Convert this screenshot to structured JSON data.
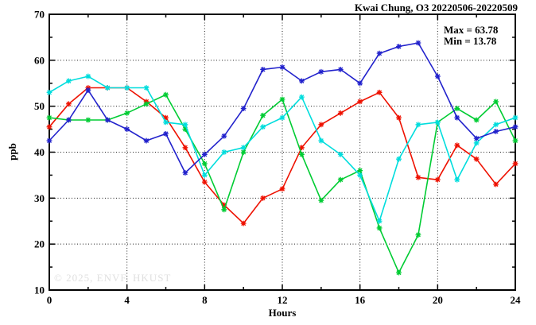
{
  "title": "Kwai Chung, O3 20220506-20220509",
  "annotation": {
    "max_label": "Max = 63.78",
    "min_label": "Min = 13.78"
  },
  "watermark": "© 2025, ENVF, HKUST",
  "chart_data": {
    "type": "line",
    "title": "Kwai Chung, O3 20220506-20220509",
    "xlabel": "Hours",
    "ylabel": "ppb",
    "xlim": [
      0,
      24
    ],
    "ylim": [
      10,
      70
    ],
    "x_major_ticks": [
      0,
      4,
      8,
      12,
      16,
      20,
      24
    ],
    "x_minor_ticks": [
      2,
      6,
      10,
      14,
      18,
      22
    ],
    "y_major_ticks": [
      10,
      20,
      30,
      40,
      50,
      60,
      70
    ],
    "y_minor_ticks": [
      15,
      25,
      35,
      45,
      55,
      65
    ],
    "x_grid": [
      4,
      8,
      12,
      16,
      20
    ],
    "y_grid": [
      20,
      30,
      40,
      50,
      60
    ],
    "grid": "dotted",
    "legend_position": "none",
    "max": 63.78,
    "min": 13.78,
    "marker": "asterisk",
    "x": [
      0,
      1,
      2,
      3,
      4,
      5,
      6,
      7,
      8,
      9,
      10,
      11,
      12,
      13,
      14,
      15,
      16,
      17,
      18,
      19,
      20,
      21,
      22,
      23,
      24
    ],
    "series": [
      {
        "name": "red",
        "color": "#ee1100",
        "values": [
          45.5,
          50.5,
          54,
          54,
          54,
          51,
          47.5,
          41,
          33.5,
          28.5,
          24.5,
          30,
          32,
          41,
          46,
          48.5,
          51,
          53,
          47.5,
          34.5,
          34,
          41.5,
          38.5,
          33,
          37.5
        ]
      },
      {
        "name": "green",
        "color": "#00cc33",
        "values": [
          47.5,
          47,
          47,
          47,
          48.5,
          50.5,
          52.5,
          45,
          37.5,
          27.5,
          40,
          48,
          51.5,
          39.5,
          29.5,
          34,
          36,
          23.5,
          13.78,
          22,
          46.5,
          49.5,
          47,
          51,
          42.5
        ]
      },
      {
        "name": "cyan",
        "color": "#00dddd",
        "values": [
          53,
          55.5,
          56.5,
          54,
          54,
          54,
          46.5,
          46,
          35,
          40,
          41,
          45.5,
          47.5,
          52,
          42.5,
          39.5,
          35,
          25,
          38.5,
          46,
          46.5,
          34,
          42,
          46,
          47.5
        ]
      },
      {
        "name": "blue",
        "color": "#2222cc",
        "values": [
          42.5,
          47,
          53.5,
          47,
          45,
          42.5,
          44,
          35.5,
          39.5,
          43.5,
          49.5,
          58,
          58.5,
          55.5,
          57.5,
          58,
          55,
          61.5,
          63,
          63.78,
          56.5,
          47.5,
          43,
          44.5,
          45.5
        ]
      }
    ]
  }
}
